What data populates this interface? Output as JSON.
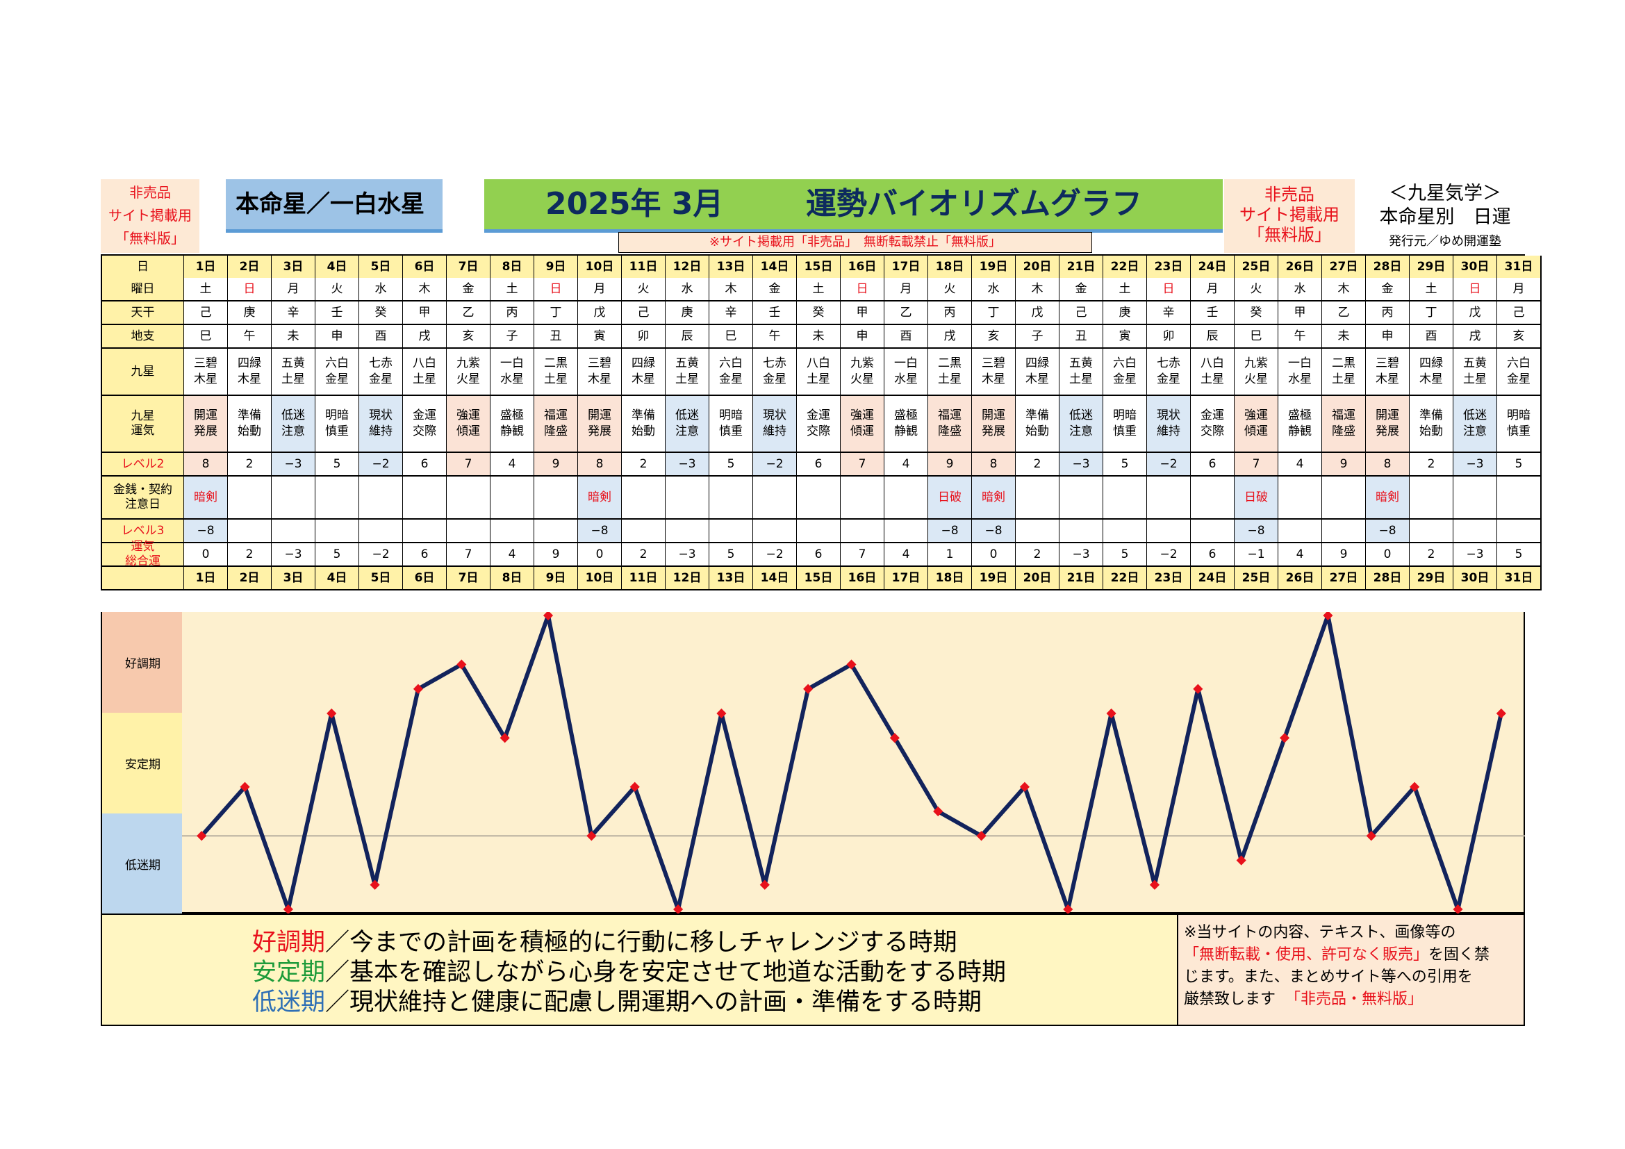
{
  "header": {
    "nonsale_left": [
      "非売品",
      "サイト掲載用",
      "「無料版」"
    ],
    "star_title": "本命星／一白水星",
    "year_month": "2025年 3月",
    "graph_title": "運勢バイオリズムグラフ",
    "nonsale_right": [
      "非売品",
      "サイト掲載用",
      "「無料版」"
    ],
    "right_title": "＜九星気学＞",
    "right_subtitle": "本命星別　日運",
    "publisher": "発行元／ゆめ開運塾",
    "notice_bar": "※サイト掲載用「非売品」　無断転載禁止「無料版」"
  },
  "table": {
    "labels": {
      "day": "日",
      "weekday": "曜日",
      "stem": "天干",
      "branch": "地支",
      "star": "九星",
      "luck": [
        "九星",
        "運気"
      ],
      "level2": "レベル2",
      "money": [
        "金銭・契約",
        "注意日"
      ],
      "level3": "レベル3",
      "total": [
        "運気",
        "総合運"
      ]
    },
    "days": [
      "1日",
      "2日",
      "3日",
      "4日",
      "5日",
      "6日",
      "7日",
      "8日",
      "9日",
      "10日",
      "11日",
      "12日",
      "13日",
      "14日",
      "15日",
      "16日",
      "17日",
      "18日",
      "19日",
      "20日",
      "21日",
      "22日",
      "23日",
      "24日",
      "25日",
      "26日",
      "27日",
      "28日",
      "29日",
      "30日",
      "31日"
    ],
    "weekdays": [
      "土",
      "日",
      "月",
      "火",
      "水",
      "木",
      "金",
      "土",
      "日",
      "月",
      "火",
      "水",
      "木",
      "金",
      "土",
      "日",
      "月",
      "火",
      "水",
      "木",
      "金",
      "土",
      "日",
      "月",
      "火",
      "水",
      "木",
      "金",
      "土",
      "日",
      "月"
    ],
    "stems": [
      "己",
      "庚",
      "辛",
      "壬",
      "癸",
      "甲",
      "乙",
      "丙",
      "丁",
      "戊",
      "己",
      "庚",
      "辛",
      "壬",
      "癸",
      "甲",
      "乙",
      "丙",
      "丁",
      "戊",
      "己",
      "庚",
      "辛",
      "壬",
      "癸",
      "甲",
      "乙",
      "丙",
      "丁",
      "戊",
      "己"
    ],
    "branches": [
      "巳",
      "午",
      "未",
      "申",
      "酉",
      "戌",
      "亥",
      "子",
      "丑",
      "寅",
      "卯",
      "辰",
      "巳",
      "午",
      "未",
      "申",
      "酉",
      "戌",
      "亥",
      "子",
      "丑",
      "寅",
      "卯",
      "辰",
      "巳",
      "午",
      "未",
      "申",
      "酉",
      "戌",
      "亥"
    ],
    "stars": [
      [
        "三碧",
        "木星"
      ],
      [
        "四緑",
        "木星"
      ],
      [
        "五黄",
        "土星"
      ],
      [
        "六白",
        "金星"
      ],
      [
        "七赤",
        "金星"
      ],
      [
        "八白",
        "土星"
      ],
      [
        "九紫",
        "火星"
      ],
      [
        "一白",
        "水星"
      ],
      [
        "二黒",
        "土星"
      ],
      [
        "三碧",
        "木星"
      ],
      [
        "四緑",
        "木星"
      ],
      [
        "五黄",
        "土星"
      ],
      [
        "六白",
        "金星"
      ],
      [
        "七赤",
        "金星"
      ],
      [
        "八白",
        "土星"
      ],
      [
        "九紫",
        "火星"
      ],
      [
        "一白",
        "水星"
      ],
      [
        "二黒",
        "土星"
      ],
      [
        "三碧",
        "木星"
      ],
      [
        "四緑",
        "木星"
      ],
      [
        "五黄",
        "土星"
      ],
      [
        "六白",
        "金星"
      ],
      [
        "七赤",
        "金星"
      ],
      [
        "八白",
        "土星"
      ],
      [
        "九紫",
        "火星"
      ],
      [
        "一白",
        "水星"
      ],
      [
        "二黒",
        "土星"
      ],
      [
        "三碧",
        "木星"
      ],
      [
        "四緑",
        "木星"
      ],
      [
        "五黄",
        "土星"
      ],
      [
        "六白",
        "金星"
      ]
    ],
    "luck": [
      [
        "開運",
        "発展"
      ],
      [
        "準備",
        "始動"
      ],
      [
        "低迷",
        "注意"
      ],
      [
        "明暗",
        "慎重"
      ],
      [
        "現状",
        "維持"
      ],
      [
        "金運",
        "交際"
      ],
      [
        "強運",
        "傾運"
      ],
      [
        "盛極",
        "静観"
      ],
      [
        "福運",
        "隆盛"
      ],
      [
        "開運",
        "発展"
      ],
      [
        "準備",
        "始動"
      ],
      [
        "低迷",
        "注意"
      ],
      [
        "明暗",
        "慎重"
      ],
      [
        "現状",
        "維持"
      ],
      [
        "金運",
        "交際"
      ],
      [
        "強運",
        "傾運"
      ],
      [
        "盛極",
        "静観"
      ],
      [
        "福運",
        "隆盛"
      ],
      [
        "開運",
        "発展"
      ],
      [
        "準備",
        "始動"
      ],
      [
        "低迷",
        "注意"
      ],
      [
        "明暗",
        "慎重"
      ],
      [
        "現状",
        "維持"
      ],
      [
        "金運",
        "交際"
      ],
      [
        "強運",
        "傾運"
      ],
      [
        "盛極",
        "静観"
      ],
      [
        "福運",
        "隆盛"
      ],
      [
        "開運",
        "発展"
      ],
      [
        "準備",
        "始動"
      ],
      [
        "低迷",
        "注意"
      ],
      [
        "明暗",
        "慎重"
      ]
    ],
    "level2": [
      "8",
      "2",
      "−3",
      "5",
      "−2",
      "6",
      "7",
      "4",
      "9",
      "8",
      "2",
      "−3",
      "5",
      "−2",
      "6",
      "7",
      "4",
      "9",
      "8",
      "2",
      "−3",
      "5",
      "−2",
      "6",
      "7",
      "4",
      "9",
      "8",
      "2",
      "−3",
      "5"
    ],
    "money": [
      "暗剣",
      "",
      "",
      "",
      "",
      "",
      "",
      "",
      "",
      "暗剣",
      "",
      "",
      "",
      "",
      "",
      "",
      "",
      "日破",
      "暗剣",
      "",
      "",
      "",
      "",
      "",
      "日破",
      "",
      "",
      "暗剣",
      "",
      "",
      ""
    ],
    "level3": [
      "−8",
      "",
      "",
      "",
      "",
      "",
      "",
      "",
      "",
      "−8",
      "",
      "",
      "",
      "",
      "",
      "",
      "",
      "−8",
      "−8",
      "",
      "",
      "",
      "",
      "",
      "−8",
      "",
      "",
      "−8",
      "",
      "",
      ""
    ],
    "total": [
      "0",
      "2",
      "−3",
      "5",
      "−2",
      "6",
      "7",
      "4",
      "9",
      "0",
      "2",
      "−3",
      "5",
      "−2",
      "6",
      "7",
      "4",
      "1",
      "0",
      "2",
      "−3",
      "5",
      "−2",
      "6",
      "−1",
      "4",
      "9",
      "0",
      "2",
      "−3",
      "5"
    ]
  },
  "zones": [
    "好調期",
    "安定期",
    "低迷期"
  ],
  "chart_data": {
    "type": "line",
    "x": [
      "1日",
      "2日",
      "3日",
      "4日",
      "5日",
      "6日",
      "7日",
      "8日",
      "9日",
      "10日",
      "11日",
      "12日",
      "13日",
      "14日",
      "15日",
      "16日",
      "17日",
      "18日",
      "19日",
      "20日",
      "21日",
      "22日",
      "23日",
      "24日",
      "25日",
      "26日",
      "27日",
      "28日",
      "29日",
      "30日",
      "31日"
    ],
    "series": [
      {
        "values": [
          0,
          2,
          -3,
          5,
          -2,
          6,
          7,
          4,
          9,
          0,
          2,
          -3,
          5,
          -2,
          6,
          7,
          4,
          1,
          0,
          2,
          -3,
          5,
          -2,
          6,
          -1,
          4,
          9,
          0,
          2,
          -3,
          5
        ]
      }
    ],
    "ylim": [
      -3,
      9
    ],
    "line_color": "#12235c",
    "marker_color": "#e8111b",
    "baseline": 0
  },
  "legend": {
    "lines": [
      {
        "term": "好調期",
        "text": "／今までの計画を積極的に行動に移しチャレンジする時期",
        "color": "#e8111b"
      },
      {
        "term": "安定期",
        "text": "／基本を確認しながら心身を安定させて地道な活動をする時期",
        "color": "#1e9b3a"
      },
      {
        "term": "低迷期",
        "text": "／現状維持と健康に配慮し開運期への計画・準備をする時期",
        "color": "#2e6fb5"
      }
    ]
  },
  "notice": {
    "line1": "※当サイトの内容、テキスト、画像等の",
    "line2_red": "「無断転載・使用、許可なく販売」",
    "line2_rest": "を固く禁",
    "line3": "じます。また、まとめサイト等への引用を",
    "line4": "厳禁致します",
    "line4_red": "「非売品・無料版」"
  },
  "colors": {
    "weekday_sunday": "#e8111b",
    "label_bg": "#fff2a8",
    "plot_bg": "#fdf0cf",
    "zone_good": "#f7c9ad",
    "zone_stable": "#fff2a8",
    "zone_low": "#bdd7ee"
  }
}
